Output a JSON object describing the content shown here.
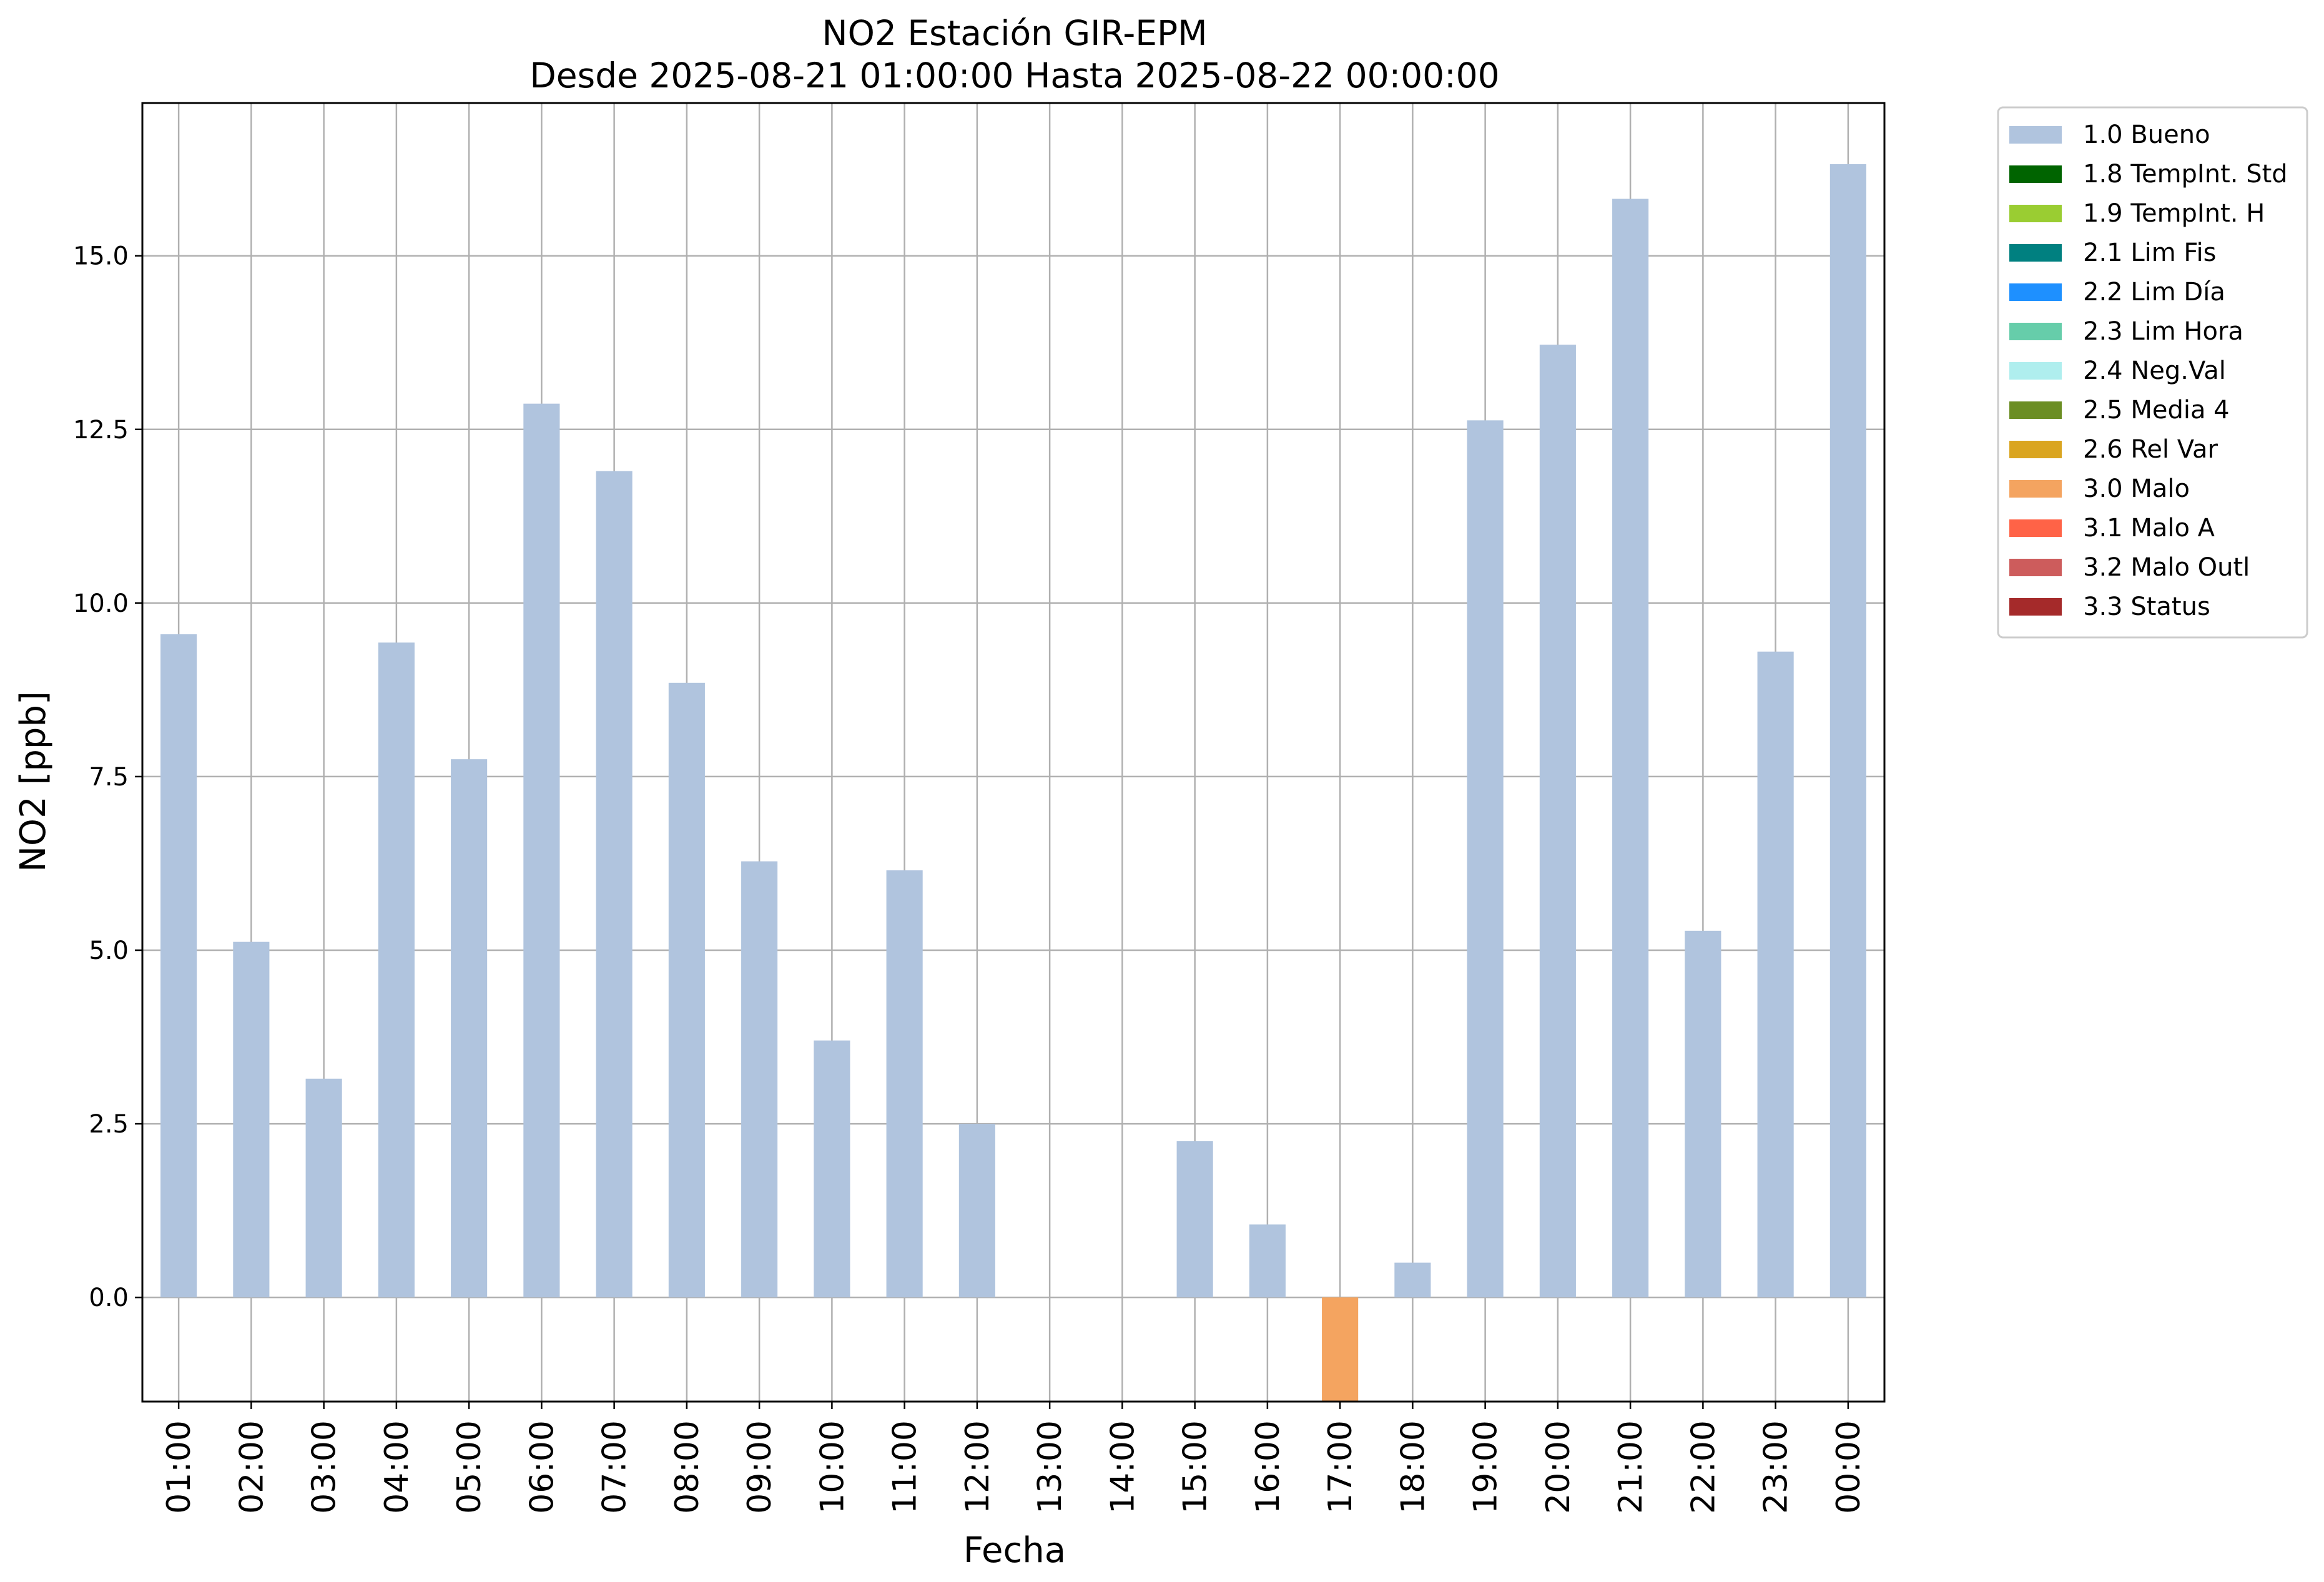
{
  "chart_data": {
    "type": "bar",
    "title": "NO2 Estación GIR-EPM",
    "subtitle": "Desde 2025-08-21 01:00:00 Hasta 2025-08-22 00:00:00",
    "xlabel": "Fecha",
    "ylabel": "NO2 [ppb]",
    "ylim": [
      -1.5,
      17.2
    ],
    "yticks": [
      "0.0",
      "2.5",
      "5.0",
      "7.5",
      "10.0",
      "12.5",
      "15.0"
    ],
    "grid": true,
    "legend_position": "outside-top-right",
    "categories": [
      "01:00",
      "02:00",
      "03:00",
      "04:00",
      "05:00",
      "06:00",
      "07:00",
      "08:00",
      "09:00",
      "10:00",
      "11:00",
      "12:00",
      "13:00",
      "14:00",
      "15:00",
      "16:00",
      "17:00",
      "18:00",
      "19:00",
      "20:00",
      "21:00",
      "22:00",
      "23:00",
      "00:00"
    ],
    "values": [
      9.55,
      5.12,
      3.15,
      9.43,
      7.75,
      12.87,
      11.9,
      8.85,
      6.28,
      3.7,
      6.15,
      2.5,
      null,
      null,
      2.25,
      1.05,
      -1.5,
      0.5,
      12.63,
      13.72,
      15.82,
      5.28,
      9.3,
      16.32
    ],
    "flags": [
      "1.0 Bueno",
      "1.0 Bueno",
      "1.0 Bueno",
      "1.0 Bueno",
      "1.0 Bueno",
      "1.0 Bueno",
      "1.0 Bueno",
      "1.0 Bueno",
      "1.0 Bueno",
      "1.0 Bueno",
      "1.0 Bueno",
      "1.0 Bueno",
      null,
      null,
      "1.0 Bueno",
      "1.0 Bueno",
      "3.0 Malo",
      "1.0 Bueno",
      "1.0 Bueno",
      "1.0 Bueno",
      "1.0 Bueno",
      "1.0 Bueno",
      "1.0 Bueno",
      "1.0 Bueno"
    ],
    "legend": [
      {
        "label": "1.0 Bueno",
        "color": "#b0c4de"
      },
      {
        "label": "1.8 TempInt. Std",
        "color": "#006400"
      },
      {
        "label": "1.9 TempInt. H",
        "color": "#9acd32"
      },
      {
        "label": "2.1 Lim Fis",
        "color": "#008080"
      },
      {
        "label": "2.2 Lim Día",
        "color": "#1e90ff"
      },
      {
        "label": "2.3 Lim Hora",
        "color": "#66cdaa"
      },
      {
        "label": "2.4 Neg.Val",
        "color": "#afeeee"
      },
      {
        "label": "2.5 Media 4",
        "color": "#6b8e23"
      },
      {
        "label": "2.6 Rel Var",
        "color": "#daa520"
      },
      {
        "label": "3.0 Malo",
        "color": "#f4a460"
      },
      {
        "label": "3.1 Malo A",
        "color": "#ff6347"
      },
      {
        "label": "3.2 Malo Outl",
        "color": "#cd5c5c"
      },
      {
        "label": "3.3 Status",
        "color": "#a52a2a"
      }
    ]
  }
}
